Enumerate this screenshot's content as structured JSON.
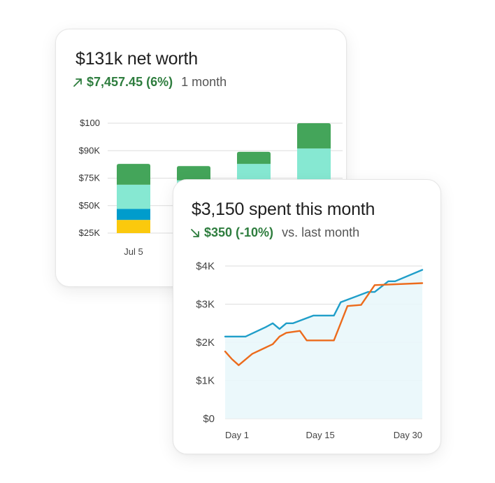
{
  "colors": {
    "positive": "#2e7d3e",
    "bar_top": "#44a55a",
    "bar_mint": "#86e8d2",
    "bar_blue": "#009ccc",
    "bar_yellow": "#fbc90d",
    "line_current": "#1f9ec9",
    "line_previous": "#ec6b1c",
    "area_fill": "#e9f7fb",
    "grid": "#dddddd"
  },
  "net_worth_card": {
    "title": "$131k net worth",
    "change_icon": "arrow-up-right-icon",
    "change_amount": "$7,457.45 (6%)",
    "change_period": "1 month"
  },
  "spending_card": {
    "title": "$3,150 spent this month",
    "change_icon": "arrow-down-right-icon",
    "change_amount": "$350 (-10%)",
    "change_period": "vs. last month"
  },
  "chart_data": [
    {
      "type": "bar",
      "stacked": true,
      "categories": [
        "Jul 5",
        "",
        "",
        ""
      ],
      "y_ticks": [
        "$25K",
        "$50K",
        "$75K",
        "$90K",
        "$100"
      ],
      "series": [
        {
          "values": [
            12,
            null,
            null,
            null
          ],
          "color": "#fbc90d"
        },
        {
          "values": [
            10,
            null,
            null,
            null
          ],
          "color": "#009ccc"
        },
        {
          "values": [
            22,
            48,
            63,
            77
          ],
          "color": "#86e8d2"
        },
        {
          "values": [
            19,
            13,
            11,
            23
          ],
          "color": "#44a55a"
        }
      ],
      "grid": true
    },
    {
      "type": "line",
      "x_labels": [
        "Day 1",
        "Day 15",
        "Day 30"
      ],
      "x_range": [
        1,
        30
      ],
      "y_ticks": [
        "$0",
        "$1K",
        "$2K",
        "$3K",
        "$4K"
      ],
      "ylim": [
        0,
        4000
      ],
      "grid": true,
      "series": [
        {
          "color": "#1f9ec9",
          "fill": true,
          "points": [
            [
              1,
              2150
            ],
            [
              3,
              2150
            ],
            [
              4,
              2150
            ],
            [
              7,
              2400
            ],
            [
              8,
              2500
            ],
            [
              9,
              2350
            ],
            [
              10,
              2500
            ],
            [
              11,
              2500
            ],
            [
              14,
              2700
            ],
            [
              16,
              2700
            ],
            [
              17,
              2700
            ],
            [
              18,
              3050
            ],
            [
              22,
              3320
            ],
            [
              23,
              3320
            ],
            [
              25,
              3600
            ],
            [
              26,
              3600
            ],
            [
              30,
              3900
            ]
          ]
        },
        {
          "color": "#ec6b1c",
          "fill": false,
          "points": [
            [
              1,
              1760
            ],
            [
              2,
              1560
            ],
            [
              3,
              1400
            ],
            [
              5,
              1700
            ],
            [
              8,
              1950
            ],
            [
              9,
              2150
            ],
            [
              10,
              2250
            ],
            [
              12,
              2300
            ],
            [
              13,
              2050
            ],
            [
              14,
              2050
            ],
            [
              17,
              2050
            ],
            [
              18,
              2500
            ],
            [
              19,
              2950
            ],
            [
              21,
              2980
            ],
            [
              23,
              3500
            ],
            [
              30,
              3550
            ]
          ]
        }
      ]
    }
  ]
}
